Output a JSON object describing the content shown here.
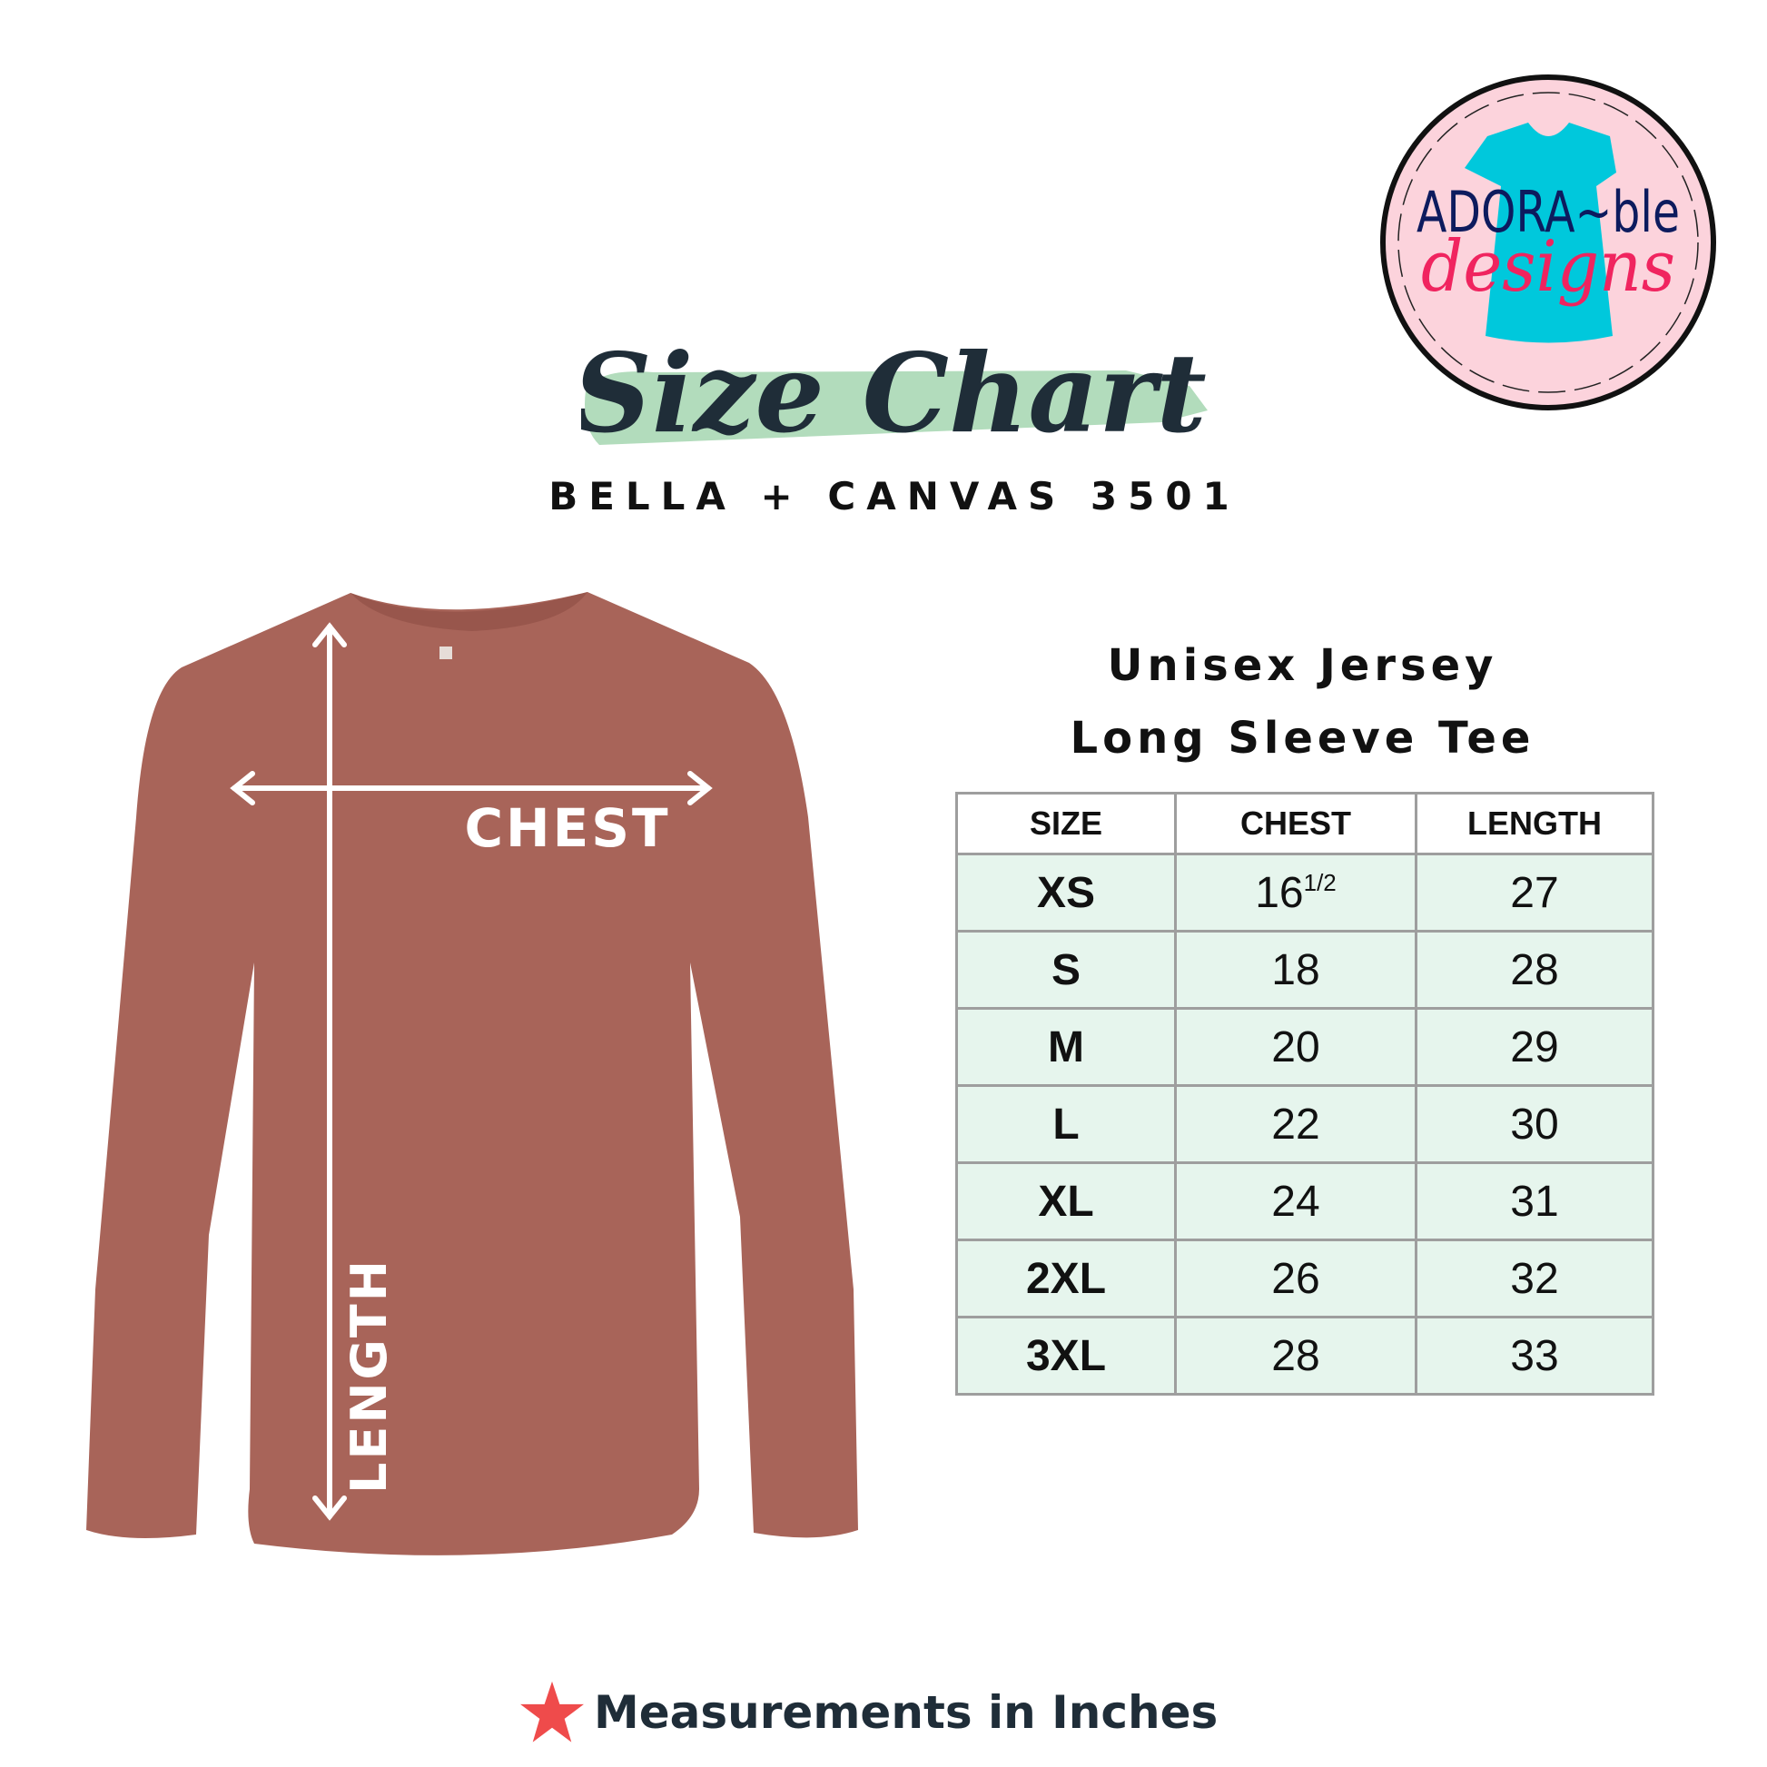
{
  "logo": {
    "line1": "ADORA~ble",
    "line2": "designs",
    "colors": {
      "ring": "#111111",
      "fill": "#fcd3dc",
      "shirt": "#00c8dc",
      "navy": "#0d1b5e",
      "pink": "#f0245f"
    }
  },
  "header": {
    "title": "Size Chart",
    "subtitle": "BELLA + CANVAS 3501",
    "brush_color": "#b2dcbc",
    "title_color": "#1f2d38"
  },
  "shirt": {
    "color": "#a86459",
    "chest_label": "CHEST",
    "length_label": "LENGTH"
  },
  "product": {
    "line1": "Unisex Jersey",
    "line2": "Long Sleeve Tee"
  },
  "table": {
    "headers": [
      "SIZE",
      "CHEST",
      "LENGTH"
    ],
    "rows": [
      {
        "size": "XS",
        "chest": "16",
        "chest_fraction": "1/2",
        "length": "27"
      },
      {
        "size": "S",
        "chest": "18",
        "length": "28"
      },
      {
        "size": "M",
        "chest": "20",
        "length": "29"
      },
      {
        "size": "L",
        "chest": "22",
        "length": "30"
      },
      {
        "size": "XL",
        "chest": "24",
        "length": "31"
      },
      {
        "size": "2XL",
        "chest": "26",
        "length": "32"
      },
      {
        "size": "3XL",
        "chest": "28",
        "length": "33"
      }
    ],
    "row_color": "#e6f5ed"
  },
  "footer": {
    "icon": "star-icon",
    "text": "Measurements in Inches",
    "star_color": "#ef4b4b"
  }
}
